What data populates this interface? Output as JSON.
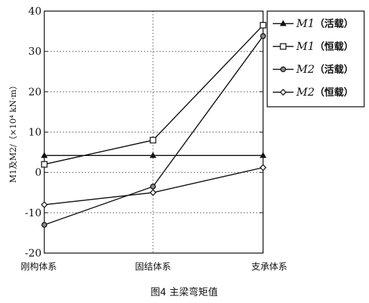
{
  "chart_data": {
    "type": "line",
    "title": "",
    "caption": "图4  主梁弯矩值",
    "xlabel": "",
    "ylabel": "M1及M2/（×10⁴ kN·m）",
    "categories": [
      "刚构体系",
      "固结体系",
      "支承体系"
    ],
    "ylim": [
      -20,
      40
    ],
    "yticks": [
      40,
      30,
      20,
      10,
      0,
      -10,
      -20
    ],
    "ytick_labels": [
      "40",
      "30",
      "20",
      "10",
      "0",
      "-10",
      "-20"
    ],
    "grid": true,
    "legend_position": "right",
    "series": [
      {
        "name": "M1（活载）",
        "marker": "triangle",
        "values": [
          4.2,
          4.2,
          4.2
        ]
      },
      {
        "name": "M1（恒载）",
        "marker": "square",
        "values": [
          2.0,
          8.0,
          36.5
        ]
      },
      {
        "name": "M2（活载）",
        "marker": "circle",
        "values": [
          -13.0,
          -3.5,
          33.8
        ]
      },
      {
        "name": "M2（恒载）",
        "marker": "diamond",
        "values": [
          -8.0,
          -5.0,
          1.2
        ]
      }
    ],
    "color": "#111111"
  }
}
